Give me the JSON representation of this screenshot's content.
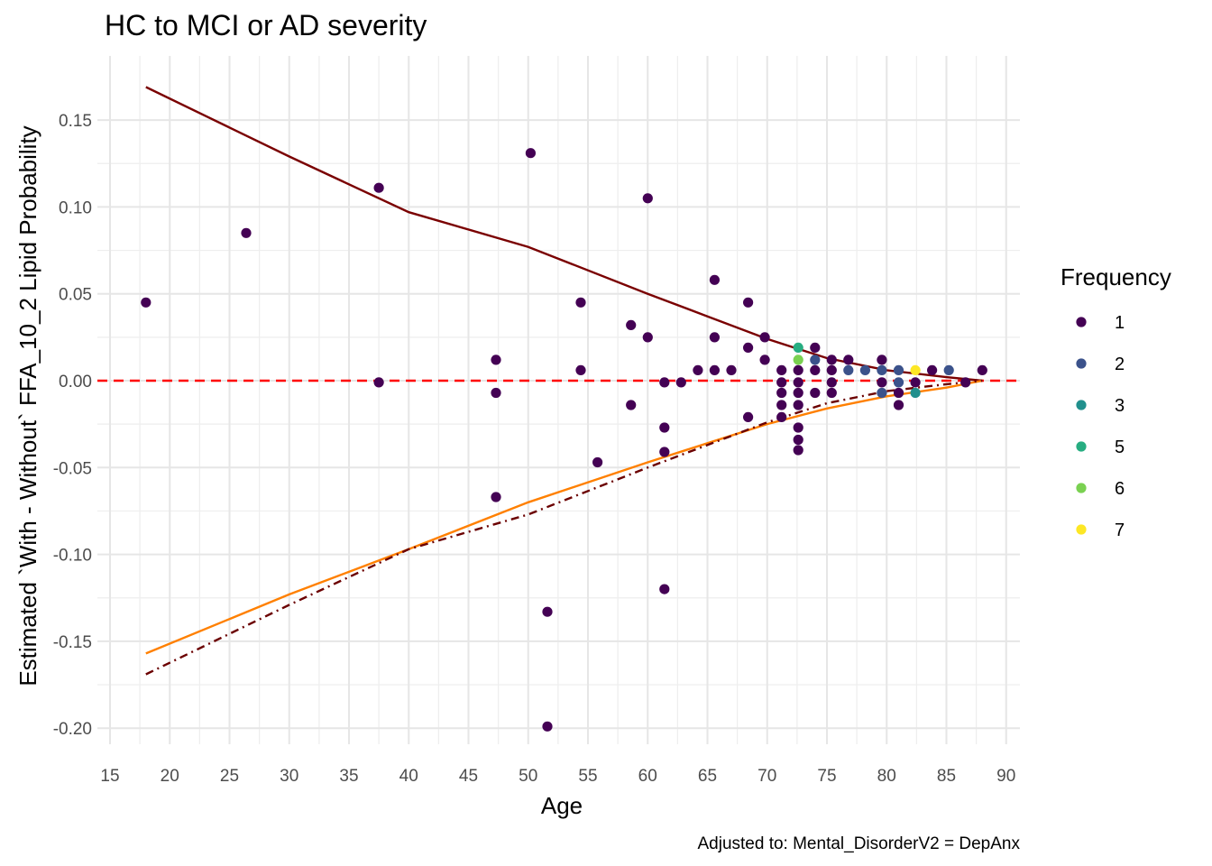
{
  "chart_data": {
    "type": "scatter",
    "title": "HC to MCI or AD severity",
    "xlabel": "Age",
    "ylabel": "Estimated `With - Without` FFA_10_2 Lipid Probability",
    "caption": "Adjusted to: Mental_DisorderV2 = DepAnx",
    "xlim": [
      15,
      90
    ],
    "ylim": [
      -0.205,
      0.175
    ],
    "x_ticks": [
      "15",
      "20",
      "25",
      "30",
      "35",
      "40",
      "45",
      "50",
      "55",
      "60",
      "65",
      "70",
      "75",
      "80",
      "85",
      "90"
    ],
    "y_ticks": [
      "0.15",
      "0.10",
      "0.05",
      "0.00",
      "-0.05",
      "-0.10",
      "-0.15",
      "-0.20"
    ],
    "grid": true,
    "reference_line": {
      "y": 0,
      "color": "#ff0000",
      "style": "dashed"
    },
    "legend": {
      "title": "Frequency",
      "position": "right",
      "entries": [
        {
          "label": "1",
          "color": "#440154"
        },
        {
          "label": "2",
          "color": "#3b528b"
        },
        {
          "label": "3",
          "color": "#21908d"
        },
        {
          "label": "5",
          "color": "#27ad81"
        },
        {
          "label": "6",
          "color": "#7ad151"
        },
        {
          "label": "7",
          "color": "#fde725"
        }
      ]
    },
    "lines": [
      {
        "name": "upper",
        "color": "#7a0000",
        "style": "solid",
        "points": [
          [
            18,
            0.169
          ],
          [
            30,
            0.129
          ],
          [
            40,
            0.097
          ],
          [
            50,
            0.077
          ],
          [
            60,
            0.05
          ],
          [
            65,
            0.037
          ],
          [
            70,
            0.024
          ],
          [
            75,
            0.013
          ],
          [
            80,
            0.006
          ],
          [
            85,
            0.002
          ],
          [
            88,
            0.0
          ]
        ]
      },
      {
        "name": "lower",
        "color": "#ff8000",
        "style": "solid",
        "points": [
          [
            18,
            -0.157
          ],
          [
            30,
            -0.123
          ],
          [
            40,
            -0.097
          ],
          [
            50,
            -0.07
          ],
          [
            60,
            -0.047
          ],
          [
            65,
            -0.036
          ],
          [
            70,
            -0.025
          ],
          [
            75,
            -0.016
          ],
          [
            80,
            -0.009
          ],
          [
            85,
            -0.004
          ],
          [
            88,
            0.0
          ]
        ]
      },
      {
        "name": "lower-mirror",
        "color": "#6b0000",
        "style": "dashdot",
        "points": [
          [
            18,
            -0.169
          ],
          [
            30,
            -0.129
          ],
          [
            40,
            -0.097
          ],
          [
            50,
            -0.077
          ],
          [
            60,
            -0.05
          ],
          [
            65,
            -0.037
          ],
          [
            70,
            -0.024
          ],
          [
            75,
            -0.013
          ],
          [
            80,
            -0.006
          ],
          [
            85,
            -0.002
          ],
          [
            88,
            0.0
          ]
        ]
      }
    ],
    "points": [
      {
        "x": 18.0,
        "y": 0.045,
        "f": "1"
      },
      {
        "x": 26.4,
        "y": 0.085,
        "f": "1"
      },
      {
        "x": 37.5,
        "y": 0.111,
        "f": "1"
      },
      {
        "x": 37.5,
        "y": -0.001,
        "f": "1"
      },
      {
        "x": 47.3,
        "y": 0.012,
        "f": "1"
      },
      {
        "x": 47.3,
        "y": -0.007,
        "f": "1"
      },
      {
        "x": 47.3,
        "y": -0.067,
        "f": "1"
      },
      {
        "x": 50.2,
        "y": 0.131,
        "f": "1"
      },
      {
        "x": 51.6,
        "y": -0.133,
        "f": "1"
      },
      {
        "x": 51.6,
        "y": -0.199,
        "f": "1"
      },
      {
        "x": 54.4,
        "y": 0.045,
        "f": "1"
      },
      {
        "x": 54.4,
        "y": 0.006,
        "f": "1"
      },
      {
        "x": 55.8,
        "y": -0.047,
        "f": "1"
      },
      {
        "x": 58.6,
        "y": 0.032,
        "f": "1"
      },
      {
        "x": 58.6,
        "y": -0.014,
        "f": "1"
      },
      {
        "x": 60.0,
        "y": 0.105,
        "f": "1"
      },
      {
        "x": 60.0,
        "y": 0.025,
        "f": "1"
      },
      {
        "x": 61.4,
        "y": -0.001,
        "f": "1"
      },
      {
        "x": 61.4,
        "y": -0.027,
        "f": "1"
      },
      {
        "x": 61.4,
        "y": -0.041,
        "f": "1"
      },
      {
        "x": 61.4,
        "y": -0.12,
        "f": "1"
      },
      {
        "x": 62.8,
        "y": -0.001,
        "f": "1"
      },
      {
        "x": 64.2,
        "y": 0.006,
        "f": "1"
      },
      {
        "x": 65.6,
        "y": 0.058,
        "f": "1"
      },
      {
        "x": 65.6,
        "y": 0.025,
        "f": "1"
      },
      {
        "x": 65.6,
        "y": 0.006,
        "f": "1"
      },
      {
        "x": 67.0,
        "y": 0.006,
        "f": "1"
      },
      {
        "x": 68.4,
        "y": 0.045,
        "f": "1"
      },
      {
        "x": 68.4,
        "y": 0.019,
        "f": "1"
      },
      {
        "x": 68.4,
        "y": -0.021,
        "f": "1"
      },
      {
        "x": 69.8,
        "y": 0.025,
        "f": "1"
      },
      {
        "x": 69.8,
        "y": 0.012,
        "f": "1"
      },
      {
        "x": 71.2,
        "y": 0.006,
        "f": "1"
      },
      {
        "x": 71.2,
        "y": -0.001,
        "f": "1"
      },
      {
        "x": 71.2,
        "y": -0.007,
        "f": "1"
      },
      {
        "x": 71.2,
        "y": -0.014,
        "f": "1"
      },
      {
        "x": 71.2,
        "y": -0.021,
        "f": "1"
      },
      {
        "x": 72.6,
        "y": 0.019,
        "f": "5"
      },
      {
        "x": 72.6,
        "y": 0.012,
        "f": "6"
      },
      {
        "x": 72.6,
        "y": 0.006,
        "f": "1"
      },
      {
        "x": 72.6,
        "y": -0.001,
        "f": "1"
      },
      {
        "x": 72.6,
        "y": -0.007,
        "f": "1"
      },
      {
        "x": 72.6,
        "y": -0.014,
        "f": "1"
      },
      {
        "x": 72.6,
        "y": -0.027,
        "f": "1"
      },
      {
        "x": 72.6,
        "y": -0.034,
        "f": "1"
      },
      {
        "x": 72.6,
        "y": -0.04,
        "f": "1"
      },
      {
        "x": 74.0,
        "y": 0.019,
        "f": "1"
      },
      {
        "x": 74.0,
        "y": 0.012,
        "f": "2"
      },
      {
        "x": 74.0,
        "y": 0.006,
        "f": "1"
      },
      {
        "x": 74.0,
        "y": -0.007,
        "f": "1"
      },
      {
        "x": 75.4,
        "y": 0.012,
        "f": "1"
      },
      {
        "x": 75.4,
        "y": 0.006,
        "f": "1"
      },
      {
        "x": 75.4,
        "y": -0.001,
        "f": "1"
      },
      {
        "x": 75.4,
        "y": -0.007,
        "f": "1"
      },
      {
        "x": 76.8,
        "y": 0.012,
        "f": "1"
      },
      {
        "x": 76.8,
        "y": 0.006,
        "f": "2"
      },
      {
        "x": 78.2,
        "y": 0.006,
        "f": "2"
      },
      {
        "x": 79.6,
        "y": 0.012,
        "f": "1"
      },
      {
        "x": 79.6,
        "y": 0.006,
        "f": "2"
      },
      {
        "x": 79.6,
        "y": -0.001,
        "f": "1"
      },
      {
        "x": 79.6,
        "y": -0.007,
        "f": "2"
      },
      {
        "x": 81.0,
        "y": 0.006,
        "f": "2"
      },
      {
        "x": 81.0,
        "y": -0.001,
        "f": "2"
      },
      {
        "x": 81.0,
        "y": -0.007,
        "f": "1"
      },
      {
        "x": 81.0,
        "y": -0.014,
        "f": "1"
      },
      {
        "x": 82.4,
        "y": 0.006,
        "f": "7"
      },
      {
        "x": 82.4,
        "y": -0.001,
        "f": "1"
      },
      {
        "x": 82.4,
        "y": -0.007,
        "f": "3"
      },
      {
        "x": 83.8,
        "y": 0.006,
        "f": "1"
      },
      {
        "x": 85.2,
        "y": 0.006,
        "f": "2"
      },
      {
        "x": 86.6,
        "y": -0.001,
        "f": "1"
      },
      {
        "x": 88.0,
        "y": 0.006,
        "f": "1"
      }
    ]
  }
}
